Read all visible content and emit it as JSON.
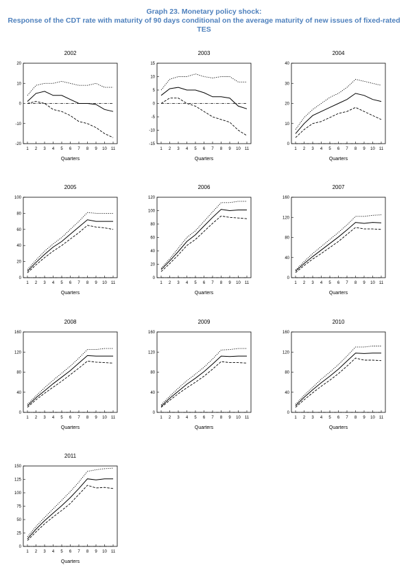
{
  "title_line1": "Graph 23. Monetary policy shock:",
  "title_line2": "Response of the CDT rate with maturity of 90 days conditional on the average maturity of new issues of fixed-rated TES",
  "colors": {
    "title": "#4f81bd",
    "line": "#000000",
    "zero": "#000000"
  },
  "chart_data": [
    {
      "type": "line",
      "title": "2002",
      "xlabel": "Quarters",
      "x": [
        1,
        2,
        3,
        4,
        5,
        6,
        7,
        8,
        9,
        10,
        11
      ],
      "ylim": [
        -20,
        20
      ],
      "yticks": [
        -20,
        -10,
        0,
        10,
        20
      ],
      "series": [
        {
          "style": "dotted",
          "values": [
            4,
            9,
            10,
            10,
            11,
            10,
            9,
            9,
            10,
            8,
            8
          ]
        },
        {
          "style": "solid",
          "values": [
            1,
            5,
            6,
            4,
            4,
            2,
            0,
            0,
            -0.5,
            -3,
            -4
          ]
        },
        {
          "style": "dashed",
          "values": [
            0,
            1,
            0,
            -3,
            -4,
            -6,
            -9,
            -10,
            -12,
            -15,
            -17
          ]
        },
        {
          "style": "zero",
          "values": [
            0,
            0,
            0,
            0,
            0,
            0,
            0,
            0,
            0,
            0,
            0
          ]
        }
      ]
    },
    {
      "type": "line",
      "title": "2003",
      "xlabel": "Quarters",
      "x": [
        1,
        2,
        3,
        4,
        5,
        6,
        7,
        8,
        9,
        10,
        11
      ],
      "ylim": [
        -15,
        15
      ],
      "yticks": [
        -15,
        -10,
        -5,
        0,
        5,
        10,
        15
      ],
      "series": [
        {
          "style": "dotted",
          "values": [
            5,
            9,
            10,
            10,
            11,
            10,
            9.5,
            10,
            10,
            8,
            8
          ]
        },
        {
          "style": "solid",
          "values": [
            3,
            5.5,
            6,
            5,
            5,
            4,
            2.5,
            2.5,
            2,
            -1,
            -2
          ]
        },
        {
          "style": "dashed",
          "values": [
            0,
            2,
            2,
            0,
            -1,
            -3,
            -5,
            -6,
            -7,
            -10,
            -12
          ]
        },
        {
          "style": "zero",
          "values": [
            0,
            0,
            0,
            0,
            0,
            0,
            0,
            0,
            0,
            0,
            0
          ]
        }
      ]
    },
    {
      "type": "line",
      "title": "2004",
      "xlabel": "Quarters",
      "x": [
        1,
        2,
        3,
        4,
        5,
        6,
        7,
        8,
        9,
        10,
        11
      ],
      "ylim": [
        0,
        40
      ],
      "yticks": [
        0,
        10,
        20,
        30,
        40
      ],
      "series": [
        {
          "style": "dotted",
          "values": [
            7,
            13,
            17,
            20,
            23,
            25,
            28,
            32,
            31,
            30,
            29
          ]
        },
        {
          "style": "solid",
          "values": [
            5,
            10,
            14,
            16,
            18,
            20,
            22,
            25,
            24,
            22,
            21
          ]
        },
        {
          "style": "dashed",
          "values": [
            3,
            7,
            10,
            11,
            13,
            15,
            16,
            18,
            16,
            14,
            12
          ]
        },
        {
          "style": "zero",
          "values": [
            0,
            0,
            0,
            0,
            0,
            0,
            0,
            0,
            0,
            0,
            0
          ]
        }
      ]
    },
    {
      "type": "line",
      "title": "2005",
      "xlabel": "Quarters",
      "x": [
        1,
        2,
        3,
        4,
        5,
        6,
        7,
        8,
        9,
        10,
        11
      ],
      "ylim": [
        0,
        100
      ],
      "yticks": [
        0,
        20,
        40,
        60,
        80,
        100
      ],
      "series": [
        {
          "style": "dotted",
          "values": [
            10,
            22,
            33,
            42,
            50,
            60,
            70,
            81,
            80,
            80,
            80
          ]
        },
        {
          "style": "solid",
          "values": [
            8,
            19,
            29,
            38,
            45,
            54,
            63,
            72,
            70,
            70,
            70
          ]
        },
        {
          "style": "dashed",
          "values": [
            6,
            16,
            25,
            33,
            40,
            48,
            56,
            65,
            63,
            62,
            60
          ]
        },
        {
          "style": "zero",
          "values": [
            0,
            0,
            0,
            0,
            0,
            0,
            0,
            0,
            0,
            0,
            0
          ]
        }
      ]
    },
    {
      "type": "line",
      "title": "2006",
      "xlabel": "Quarters",
      "x": [
        1,
        2,
        3,
        4,
        5,
        6,
        7,
        8,
        9,
        10,
        11
      ],
      "ylim": [
        0,
        120
      ],
      "yticks": [
        0,
        20,
        40,
        60,
        80,
        100,
        120
      ],
      "series": [
        {
          "style": "dotted",
          "values": [
            14,
            28,
            44,
            60,
            70,
            84,
            98,
            112,
            112,
            114,
            114
          ]
        },
        {
          "style": "solid",
          "values": [
            12,
            25,
            39,
            54,
            64,
            77,
            90,
            102,
            100,
            101,
            101
          ]
        },
        {
          "style": "dashed",
          "values": [
            9,
            21,
            34,
            48,
            57,
            69,
            81,
            92,
            90,
            89,
            88
          ]
        },
        {
          "style": "zero",
          "values": [
            0,
            0,
            0,
            0,
            0,
            0,
            0,
            0,
            0,
            0,
            0
          ]
        }
      ]
    },
    {
      "type": "line",
      "title": "2007",
      "xlabel": "Quarters",
      "x": [
        1,
        2,
        3,
        4,
        5,
        6,
        7,
        8,
        9,
        10,
        11
      ],
      "ylim": [
        0,
        160
      ],
      "yticks": [
        0,
        40,
        80,
        120,
        160
      ],
      "series": [
        {
          "style": "dotted",
          "values": [
            15,
            32,
            48,
            62,
            76,
            90,
            105,
            122,
            122,
            124,
            125
          ]
        },
        {
          "style": "solid",
          "values": [
            13,
            28,
            42,
            55,
            68,
            81,
            95,
            110,
            108,
            110,
            109
          ]
        },
        {
          "style": "dashed",
          "values": [
            10,
            24,
            37,
            48,
            60,
            72,
            86,
            100,
            97,
            97,
            96
          ]
        },
        {
          "style": "zero",
          "values": [
            0,
            0,
            0,
            0,
            0,
            0,
            0,
            0,
            0,
            0,
            0
          ]
        }
      ]
    },
    {
      "type": "line",
      "title": "2008",
      "xlabel": "Quarters",
      "x": [
        1,
        2,
        3,
        4,
        5,
        6,
        7,
        8,
        9,
        10,
        11
      ],
      "ylim": [
        0,
        160
      ],
      "yticks": [
        0,
        40,
        80,
        120,
        160
      ],
      "series": [
        {
          "style": "dotted",
          "values": [
            16,
            33,
            49,
            64,
            78,
            92,
            108,
            125,
            125,
            127,
            127
          ]
        },
        {
          "style": "solid",
          "values": [
            13,
            29,
            43,
            57,
            70,
            83,
            98,
            113,
            112,
            112,
            112
          ]
        },
        {
          "style": "dashed",
          "values": [
            10,
            25,
            38,
            50,
            62,
            75,
            88,
            102,
            100,
            99,
            98
          ]
        },
        {
          "style": "zero",
          "values": [
            0,
            0,
            0,
            0,
            0,
            0,
            0,
            0,
            0,
            0,
            0
          ]
        }
      ]
    },
    {
      "type": "line",
      "title": "2009",
      "xlabel": "Quarters",
      "x": [
        1,
        2,
        3,
        4,
        5,
        6,
        7,
        8,
        9,
        10,
        11
      ],
      "ylim": [
        0,
        160
      ],
      "yticks": [
        0,
        40,
        80,
        120,
        160
      ],
      "series": [
        {
          "style": "dotted",
          "values": [
            15,
            32,
            48,
            63,
            76,
            90,
            106,
            124,
            125,
            127,
            127
          ]
        },
        {
          "style": "solid",
          "values": [
            12,
            28,
            42,
            56,
            68,
            81,
            96,
            112,
            111,
            112,
            112
          ]
        },
        {
          "style": "dashed",
          "values": [
            10,
            24,
            37,
            49,
            60,
            72,
            86,
            101,
            99,
            99,
            98
          ]
        },
        {
          "style": "zero",
          "values": [
            0,
            0,
            0,
            0,
            0,
            0,
            0,
            0,
            0,
            0,
            0
          ]
        }
      ]
    },
    {
      "type": "line",
      "title": "2010",
      "xlabel": "Quarters",
      "x": [
        1,
        2,
        3,
        4,
        5,
        6,
        7,
        8,
        9,
        10,
        11
      ],
      "ylim": [
        0,
        160
      ],
      "yticks": [
        0,
        40,
        80,
        120,
        160
      ],
      "series": [
        {
          "style": "dotted",
          "values": [
            16,
            34,
            50,
            66,
            80,
            95,
            112,
            130,
            130,
            132,
            132
          ]
        },
        {
          "style": "solid",
          "values": [
            13,
            30,
            45,
            59,
            72,
            86,
            102,
            118,
            117,
            118,
            118
          ]
        },
        {
          "style": "dashed",
          "values": [
            10,
            25,
            39,
            52,
            64,
            77,
            92,
            108,
            104,
            104,
            103
          ]
        },
        {
          "style": "zero",
          "values": [
            0,
            0,
            0,
            0,
            0,
            0,
            0,
            0,
            0,
            0,
            0
          ]
        }
      ]
    },
    {
      "type": "line",
      "title": "2011",
      "xlabel": "Quarters",
      "x": [
        1,
        2,
        3,
        4,
        5,
        6,
        7,
        8,
        9,
        10,
        11
      ],
      "ylim": [
        0,
        150
      ],
      "yticks": [
        0,
        25,
        50,
        75,
        100,
        125,
        150
      ],
      "series": [
        {
          "style": "dotted",
          "values": [
            18,
            37,
            54,
            70,
            86,
            102,
            120,
            140,
            143,
            145,
            146
          ]
        },
        {
          "style": "solid",
          "values": [
            14,
            32,
            48,
            62,
            76,
            91,
            108,
            126,
            124,
            126,
            126
          ]
        },
        {
          "style": "dashed",
          "values": [
            11,
            27,
            42,
            55,
            67,
            80,
            97,
            114,
            109,
            110,
            108
          ]
        },
        {
          "style": "zero",
          "values": [
            0,
            0,
            0,
            0,
            0,
            0,
            0,
            0,
            0,
            0,
            0
          ]
        }
      ]
    }
  ]
}
